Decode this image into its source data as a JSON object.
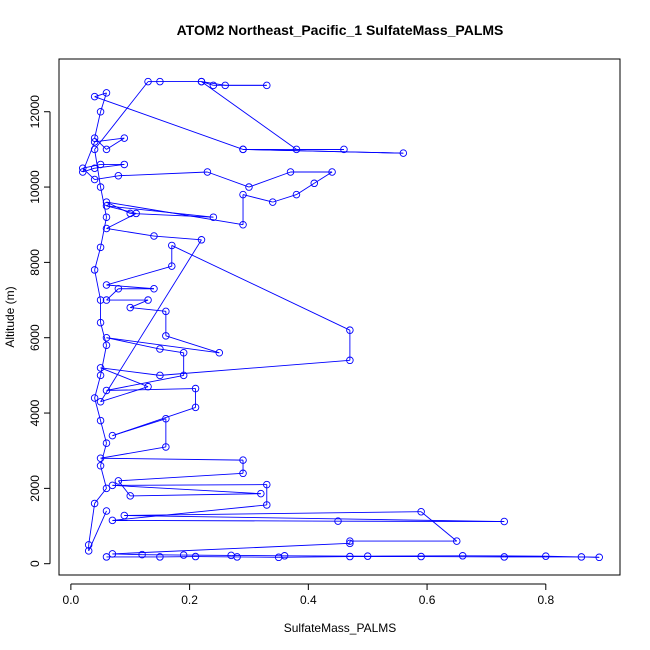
{
  "chart_data": {
    "type": "line",
    "title": "ATOM2 Northeast_Pacific_1 SulfateMass_PALMS",
    "xlabel": "SulfateMass_PALMS",
    "ylabel": "Altitude (m)",
    "xlim": [
      -0.02,
      0.925
    ],
    "ylim": [
      -300,
      13400
    ],
    "xticks": [
      {
        "value": 0.0,
        "label": "0.0"
      },
      {
        "value": 0.2,
        "label": "0.2"
      },
      {
        "value": 0.4,
        "label": "0.4"
      },
      {
        "value": 0.6,
        "label": "0.6"
      },
      {
        "value": 0.8,
        "label": "0.8"
      }
    ],
    "yticks": [
      {
        "value": 0,
        "label": "0"
      },
      {
        "value": 2000,
        "label": "2000"
      },
      {
        "value": 4000,
        "label": "4000"
      },
      {
        "value": 6000,
        "label": "6000"
      },
      {
        "value": 8000,
        "label": "8000"
      },
      {
        "value": 10000,
        "label": "10000"
      },
      {
        "value": 12000,
        "label": "12000"
      }
    ],
    "grid": false,
    "legend": "none",
    "color": "#0000ff",
    "series": [
      {
        "points": [
          [
            0.06,
            180
          ],
          [
            0.15,
            180
          ],
          [
            0.21,
            190
          ],
          [
            0.28,
            180
          ],
          [
            0.35,
            170
          ],
          [
            0.47,
            190
          ],
          [
            0.59,
            190
          ],
          [
            0.73,
            180
          ],
          [
            0.86,
            180
          ],
          [
            0.89,
            170
          ],
          [
            0.8,
            200
          ],
          [
            0.66,
            210
          ],
          [
            0.5,
            200
          ],
          [
            0.36,
            210
          ],
          [
            0.27,
            220
          ],
          [
            0.19,
            230
          ],
          [
            0.12,
            240
          ],
          [
            0.07,
            260
          ],
          [
            0.47,
            540
          ],
          [
            0.47,
            600
          ],
          [
            0.65,
            600
          ],
          [
            0.59,
            1380
          ],
          [
            0.09,
            1280
          ],
          [
            0.73,
            1120
          ],
          [
            0.45,
            1130
          ],
          [
            0.07,
            1150
          ],
          [
            0.33,
            1560
          ],
          [
            0.33,
            2100
          ],
          [
            0.07,
            2080
          ],
          [
            0.32,
            1860
          ],
          [
            0.1,
            1800
          ],
          [
            0.08,
            2200
          ],
          [
            0.29,
            2400
          ],
          [
            0.29,
            2750
          ],
          [
            0.05,
            2800
          ],
          [
            0.16,
            3100
          ],
          [
            0.16,
            3850
          ],
          [
            0.07,
            3400
          ],
          [
            0.21,
            4150
          ],
          [
            0.21,
            4650
          ],
          [
            0.06,
            4600
          ],
          [
            0.19,
            5000
          ],
          [
            0.19,
            5600
          ],
          [
            0.15,
            5700
          ],
          [
            0.06,
            6000
          ],
          [
            0.25,
            5600
          ],
          [
            0.16,
            6050
          ],
          [
            0.16,
            6700
          ],
          [
            0.1,
            6800
          ],
          [
            0.13,
            7000
          ],
          [
            0.06,
            7000
          ],
          [
            0.08,
            7300
          ],
          [
            0.14,
            7300
          ],
          [
            0.06,
            7400
          ],
          [
            0.17,
            7900
          ],
          [
            0.17,
            8450
          ],
          [
            0.47,
            6200
          ],
          [
            0.47,
            5400
          ],
          [
            0.15,
            5000
          ],
          [
            0.05,
            5200
          ],
          [
            0.13,
            4700
          ],
          [
            0.05,
            4300
          ],
          [
            0.22,
            8600
          ],
          [
            0.14,
            8700
          ],
          [
            0.06,
            8900
          ],
          [
            0.11,
            9300
          ],
          [
            0.06,
            9500
          ],
          [
            0.24,
            9200
          ],
          [
            0.1,
            9300
          ],
          [
            0.06,
            9600
          ],
          [
            0.29,
            9000
          ],
          [
            0.29,
            9800
          ],
          [
            0.34,
            9600
          ],
          [
            0.38,
            9800
          ],
          [
            0.41,
            10100
          ],
          [
            0.44,
            10400
          ],
          [
            0.37,
            10400
          ],
          [
            0.3,
            10000
          ],
          [
            0.23,
            10400
          ],
          [
            0.08,
            10300
          ],
          [
            0.04,
            10200
          ],
          [
            0.02,
            10500
          ],
          [
            0.05,
            10600
          ],
          [
            0.09,
            10600
          ],
          [
            0.04,
            10500
          ],
          [
            0.02,
            10400
          ],
          [
            0.04,
            11200
          ],
          [
            0.09,
            11300
          ],
          [
            0.06,
            11000
          ],
          [
            0.04,
            11300
          ],
          [
            0.05,
            12000
          ],
          [
            0.06,
            12500
          ],
          [
            0.04,
            12400
          ],
          [
            0.29,
            11000
          ],
          [
            0.56,
            10900
          ],
          [
            0.29,
            11000
          ],
          [
            0.46,
            11000
          ],
          [
            0.38,
            11000
          ],
          [
            0.22,
            12800
          ],
          [
            0.26,
            12700
          ],
          [
            0.33,
            12700
          ],
          [
            0.24,
            12700
          ],
          [
            0.22,
            12800
          ],
          [
            0.15,
            12800
          ],
          [
            0.13,
            12800
          ],
          [
            0.04,
            11000
          ],
          [
            0.05,
            10000
          ],
          [
            0.06,
            9200
          ],
          [
            0.05,
            8400
          ],
          [
            0.04,
            7800
          ],
          [
            0.05,
            7000
          ],
          [
            0.05,
            6400
          ],
          [
            0.06,
            5800
          ],
          [
            0.05,
            5000
          ],
          [
            0.04,
            4400
          ],
          [
            0.05,
            3800
          ],
          [
            0.06,
            3200
          ],
          [
            0.05,
            2600
          ],
          [
            0.06,
            2000
          ],
          [
            0.04,
            1600
          ],
          [
            0.03,
            500
          ],
          [
            0.03,
            340
          ],
          [
            0.06,
            1400
          ]
        ]
      }
    ]
  }
}
